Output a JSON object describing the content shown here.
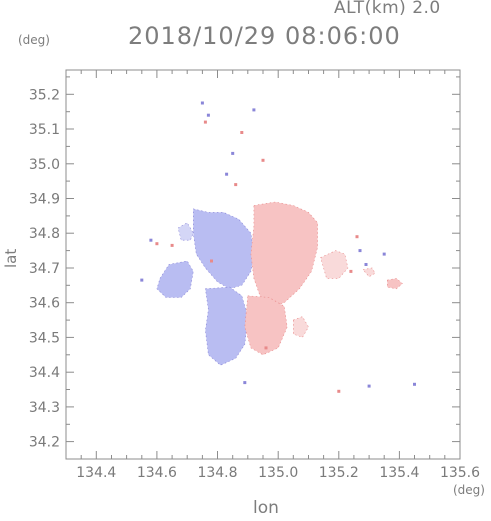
{
  "header": {
    "altitude_label": "ALT(km) 2.0",
    "timestamp": "2018/10/29 08:06:00"
  },
  "axes": {
    "x_label": "lon",
    "y_label": "lat",
    "x_unit": "(deg)",
    "y_unit": "(deg)",
    "x_range": [
      134.3,
      135.6
    ],
    "y_range": [
      34.15,
      35.27
    ],
    "x_ticks": [
      "134.4",
      "134.6",
      "134.8",
      "135.0",
      "135.2",
      "135.4",
      "135.6"
    ],
    "y_ticks": [
      "34.2",
      "34.3",
      "34.4",
      "34.5",
      "34.6",
      "34.7",
      "34.8",
      "34.9",
      "35.0",
      "35.1",
      "35.2"
    ]
  },
  "map_data": {
    "type": "radar-doppler-velocity",
    "colors": {
      "toward": "#b9bdf2",
      "toward_light": "#d4d6f6",
      "away": "#f7c3c3",
      "away_light": "#f9dada",
      "edge_blue": "#8a86d8",
      "edge_red": "#e88a8a"
    },
    "regions": [
      {
        "polarity": "toward",
        "points": [
          [
            134.61,
            34.67
          ],
          [
            134.64,
            34.71
          ],
          [
            134.7,
            34.72
          ],
          [
            134.72,
            34.69
          ],
          [
            134.71,
            34.64
          ],
          [
            134.68,
            34.615
          ],
          [
            134.63,
            34.615
          ],
          [
            134.6,
            34.64
          ]
        ]
      },
      {
        "polarity": "toward",
        "points": [
          [
            134.72,
            34.87
          ],
          [
            134.77,
            34.86
          ],
          [
            134.82,
            34.86
          ],
          [
            134.87,
            34.84
          ],
          [
            134.91,
            34.8
          ],
          [
            134.92,
            34.74
          ],
          [
            134.91,
            34.69
          ],
          [
            134.88,
            34.65
          ],
          [
            134.84,
            34.64
          ],
          [
            134.8,
            34.66
          ],
          [
            134.76,
            34.7
          ],
          [
            134.73,
            34.74
          ],
          [
            134.72,
            34.8
          ]
        ]
      },
      {
        "polarity": "toward",
        "points": [
          [
            134.76,
            34.64
          ],
          [
            134.84,
            34.645
          ],
          [
            134.88,
            34.62
          ],
          [
            134.9,
            34.56
          ],
          [
            134.89,
            34.48
          ],
          [
            134.86,
            34.44
          ],
          [
            134.81,
            34.42
          ],
          [
            134.77,
            34.45
          ],
          [
            134.76,
            34.52
          ],
          [
            134.77,
            34.58
          ]
        ]
      },
      {
        "polarity": "toward_light",
        "points": [
          [
            134.67,
            34.815
          ],
          [
            134.7,
            34.83
          ],
          [
            134.72,
            34.8
          ],
          [
            134.71,
            34.78
          ],
          [
            134.68,
            34.78
          ]
        ]
      },
      {
        "polarity": "away",
        "points": [
          [
            134.92,
            34.88
          ],
          [
            134.99,
            34.89
          ],
          [
            135.05,
            34.88
          ],
          [
            135.1,
            34.86
          ],
          [
            135.13,
            34.83
          ],
          [
            135.13,
            34.76
          ],
          [
            135.11,
            34.69
          ],
          [
            135.07,
            34.64
          ],
          [
            135.02,
            34.6
          ],
          [
            134.98,
            34.59
          ],
          [
            134.94,
            34.62
          ],
          [
            134.92,
            34.67
          ],
          [
            134.91,
            34.74
          ],
          [
            134.92,
            34.82
          ]
        ]
      },
      {
        "polarity": "away",
        "points": [
          [
            134.9,
            34.62
          ],
          [
            134.97,
            34.615
          ],
          [
            135.02,
            34.59
          ],
          [
            135.03,
            34.53
          ],
          [
            135.0,
            34.47
          ],
          [
            134.95,
            34.45
          ],
          [
            134.91,
            34.47
          ],
          [
            134.89,
            34.53
          ]
        ]
      },
      {
        "polarity": "away_light",
        "points": [
          [
            135.14,
            34.73
          ],
          [
            135.19,
            34.75
          ],
          [
            135.22,
            34.74
          ],
          [
            135.23,
            34.7
          ],
          [
            135.2,
            34.67
          ],
          [
            135.16,
            34.67
          ]
        ]
      },
      {
        "polarity": "away_light",
        "points": [
          [
            135.05,
            34.55
          ],
          [
            135.08,
            34.56
          ],
          [
            135.1,
            34.53
          ],
          [
            135.08,
            34.5
          ],
          [
            135.05,
            34.51
          ]
        ]
      },
      {
        "polarity": "away",
        "points": [
          [
            135.36,
            34.665
          ],
          [
            135.39,
            34.67
          ],
          [
            135.41,
            34.655
          ],
          [
            135.39,
            34.64
          ],
          [
            135.36,
            34.645
          ]
        ]
      },
      {
        "polarity": "away_light",
        "points": [
          [
            135.28,
            34.695
          ],
          [
            135.31,
            34.7
          ],
          [
            135.32,
            34.685
          ],
          [
            135.3,
            34.675
          ]
        ]
      }
    ],
    "specks": [
      {
        "polarity": "edge_blue",
        "lon": 134.75,
        "lat": 35.175
      },
      {
        "polarity": "edge_red",
        "lon": 134.76,
        "lat": 35.12
      },
      {
        "polarity": "edge_blue",
        "lon": 134.77,
        "lat": 35.14
      },
      {
        "polarity": "edge_blue",
        "lon": 134.92,
        "lat": 35.155
      },
      {
        "polarity": "edge_red",
        "lon": 134.88,
        "lat": 35.09
      },
      {
        "polarity": "edge_blue",
        "lon": 134.85,
        "lat": 35.03
      },
      {
        "polarity": "edge_red",
        "lon": 134.95,
        "lat": 35.01
      },
      {
        "polarity": "edge_blue",
        "lon": 134.83,
        "lat": 34.97
      },
      {
        "polarity": "edge_red",
        "lon": 134.86,
        "lat": 34.94
      },
      {
        "polarity": "edge_blue",
        "lon": 134.58,
        "lat": 34.78
      },
      {
        "polarity": "edge_red",
        "lon": 134.6,
        "lat": 34.77
      },
      {
        "polarity": "edge_red",
        "lon": 134.65,
        "lat": 34.765
      },
      {
        "polarity": "edge_blue",
        "lon": 134.55,
        "lat": 34.665
      },
      {
        "polarity": "edge_red",
        "lon": 134.78,
        "lat": 34.72
      },
      {
        "polarity": "edge_red",
        "lon": 135.26,
        "lat": 34.79
      },
      {
        "polarity": "edge_blue",
        "lon": 135.27,
        "lat": 34.75
      },
      {
        "polarity": "edge_blue",
        "lon": 135.29,
        "lat": 34.71
      },
      {
        "polarity": "edge_blue",
        "lon": 135.35,
        "lat": 34.74
      },
      {
        "polarity": "edge_red",
        "lon": 135.24,
        "lat": 34.69
      },
      {
        "polarity": "edge_red",
        "lon": 135.2,
        "lat": 34.345
      },
      {
        "polarity": "edge_blue",
        "lon": 135.45,
        "lat": 34.365
      },
      {
        "polarity": "edge_blue",
        "lon": 134.89,
        "lat": 34.37
      },
      {
        "polarity": "edge_red",
        "lon": 134.96,
        "lat": 34.47
      },
      {
        "polarity": "edge_blue",
        "lon": 135.3,
        "lat": 34.36
      }
    ]
  }
}
